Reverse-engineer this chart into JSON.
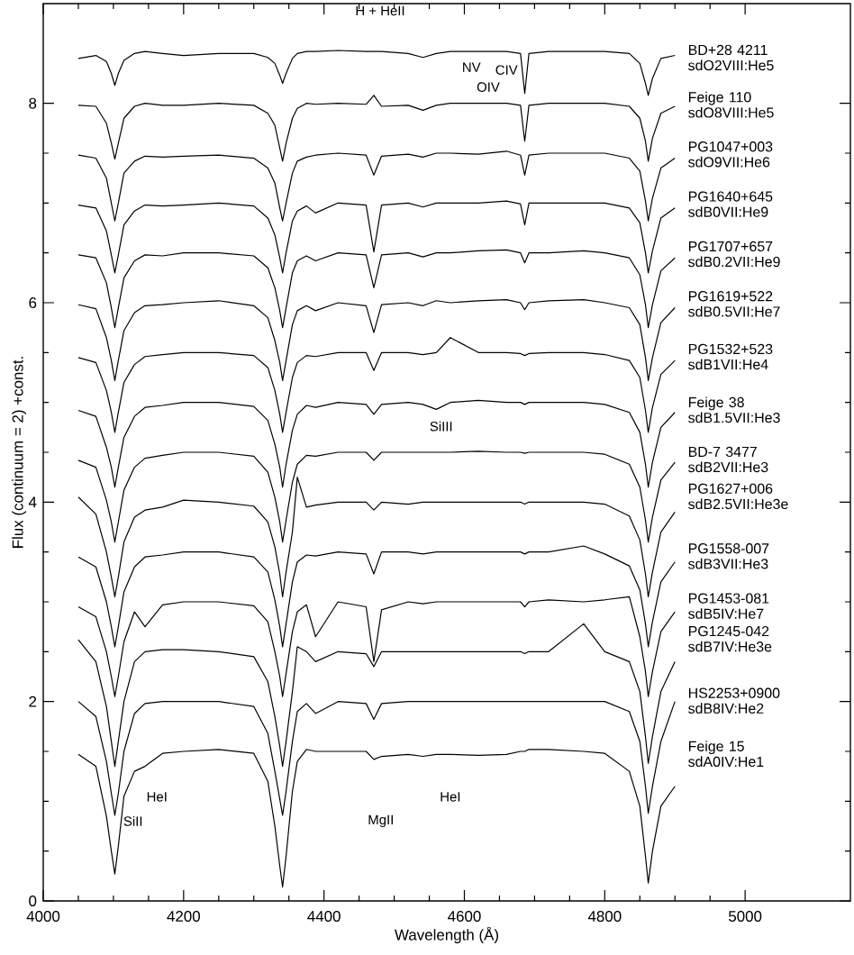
{
  "chart_data": {
    "type": "line",
    "xlabel": "Wavelength (Å)",
    "ylabel": "Flux (continuum = 2) +const.",
    "xlim": [
      4000,
      5150
    ],
    "ylim": [
      0,
      9.0
    ],
    "xticks": [
      4000,
      4200,
      4400,
      4600,
      4800,
      5000
    ],
    "yticks": [
      0,
      2,
      4,
      6,
      8
    ],
    "line_style": "solid",
    "x": [
      4050,
      4075,
      4090,
      4097,
      4102,
      4107,
      4115,
      4130,
      4145,
      4170,
      4200,
      4250,
      4300,
      4320,
      4330,
      4337,
      4341,
      4346,
      4355,
      4362,
      4375,
      4388,
      4420,
      4460,
      4471,
      4482,
      4520,
      4541,
      4560,
      4580,
      4620,
      4660,
      4680,
      4686,
      4692,
      4720,
      4770,
      4800,
      4835,
      4850,
      4858,
      4862,
      4868,
      4880,
      4900
    ],
    "series": [
      {
        "name": "BD+28 4211 sdO2VIII:He5",
        "color": "#000000",
        "values": [
          8.45,
          8.48,
          8.42,
          8.3,
          8.18,
          8.3,
          8.43,
          8.5,
          8.52,
          8.5,
          8.48,
          8.5,
          8.5,
          8.46,
          8.4,
          8.28,
          8.2,
          8.3,
          8.45,
          8.5,
          8.52,
          8.52,
          8.53,
          8.52,
          8.52,
          8.52,
          8.5,
          8.46,
          8.5,
          8.52,
          8.52,
          8.52,
          8.5,
          8.1,
          8.5,
          8.52,
          8.52,
          8.52,
          8.5,
          8.4,
          8.2,
          8.08,
          8.25,
          8.45,
          8.48
        ]
      },
      {
        "name": "Feige 110 sdO8VIII:He5",
        "color": "#000000",
        "values": [
          7.98,
          7.97,
          7.8,
          7.6,
          7.44,
          7.6,
          7.85,
          7.97,
          8.0,
          7.98,
          7.98,
          8.0,
          7.98,
          7.9,
          7.78,
          7.55,
          7.42,
          7.6,
          7.85,
          7.95,
          8.0,
          7.99,
          8.0,
          7.99,
          8.08,
          7.97,
          7.98,
          7.93,
          7.98,
          8.0,
          8.0,
          8.0,
          7.98,
          7.62,
          7.98,
          8.0,
          8.0,
          8.0,
          7.97,
          7.85,
          7.62,
          7.42,
          7.65,
          7.9,
          7.97
        ]
      },
      {
        "name": "PG1047+003 sdO9VII:He6",
        "color": "#000000",
        "values": [
          7.48,
          7.45,
          7.25,
          7.0,
          6.82,
          7.0,
          7.3,
          7.42,
          7.47,
          7.46,
          7.47,
          7.48,
          7.45,
          7.35,
          7.2,
          6.95,
          6.82,
          7.0,
          7.3,
          7.42,
          7.46,
          7.48,
          7.5,
          7.48,
          7.28,
          7.47,
          7.49,
          7.46,
          7.5,
          7.5,
          7.49,
          7.52,
          7.48,
          7.28,
          7.48,
          7.5,
          7.5,
          7.5,
          7.45,
          7.32,
          7.02,
          6.82,
          7.05,
          7.35,
          7.45
        ]
      },
      {
        "name": "PG1640+645 sdB0VII:He9",
        "color": "#000000",
        "values": [
          6.98,
          6.95,
          6.72,
          6.48,
          6.3,
          6.48,
          6.78,
          6.92,
          6.98,
          6.97,
          6.98,
          7.0,
          6.97,
          6.85,
          6.68,
          6.45,
          6.3,
          6.5,
          6.82,
          6.92,
          6.97,
          6.9,
          7.0,
          6.98,
          6.51,
          6.98,
          7.0,
          6.96,
          7.0,
          7.0,
          7.0,
          7.02,
          6.99,
          6.78,
          7.0,
          7.0,
          7.0,
          7.0,
          6.95,
          6.8,
          6.5,
          6.3,
          6.52,
          6.85,
          6.95
        ]
      },
      {
        "name": "PG1707+657 sdB0.2VII:He9",
        "color": "#000000",
        "values": [
          6.48,
          6.45,
          6.2,
          5.95,
          5.75,
          5.95,
          6.25,
          6.42,
          6.48,
          6.47,
          6.5,
          6.5,
          6.47,
          6.35,
          6.15,
          5.92,
          5.75,
          5.95,
          6.3,
          6.42,
          6.47,
          6.42,
          6.5,
          6.48,
          6.15,
          6.48,
          6.5,
          6.46,
          6.5,
          6.5,
          6.52,
          6.53,
          6.5,
          6.4,
          6.5,
          6.5,
          6.52,
          6.5,
          6.45,
          6.28,
          5.98,
          5.75,
          5.98,
          6.32,
          6.45
        ]
      },
      {
        "name": "PG1619+522 sdB0.5VII:He7",
        "color": "#000000",
        "values": [
          5.98,
          5.94,
          5.65,
          5.42,
          5.22,
          5.42,
          5.72,
          5.9,
          5.97,
          5.98,
          6.0,
          6.02,
          5.97,
          5.85,
          5.62,
          5.4,
          5.22,
          5.42,
          5.78,
          5.92,
          5.97,
          5.92,
          6.0,
          5.97,
          5.7,
          5.98,
          6.0,
          5.97,
          6.02,
          6.0,
          6.02,
          6.03,
          6.0,
          5.93,
          6.0,
          6.02,
          6.03,
          6.0,
          5.95,
          5.78,
          5.45,
          5.22,
          5.45,
          5.8,
          5.95
        ]
      },
      {
        "name": "PG1532+523 sdB1VII:He4",
        "color": "#000000",
        "values": [
          5.45,
          5.4,
          5.12,
          4.9,
          4.7,
          4.9,
          5.2,
          5.38,
          5.46,
          5.48,
          5.5,
          5.5,
          5.47,
          5.35,
          5.12,
          4.88,
          4.7,
          4.9,
          5.25,
          5.4,
          5.47,
          5.46,
          5.5,
          5.5,
          5.32,
          5.5,
          5.5,
          5.48,
          5.5,
          5.65,
          5.5,
          5.5,
          5.49,
          5.47,
          5.49,
          5.5,
          5.5,
          5.48,
          5.42,
          5.25,
          4.92,
          4.7,
          4.95,
          5.28,
          5.42
        ]
      },
      {
        "name": "Feige 38 sdB1.5VII:He3",
        "color": "#000000",
        "values": [
          4.92,
          4.86,
          4.55,
          4.35,
          4.15,
          4.35,
          4.65,
          4.86,
          4.95,
          4.97,
          5.0,
          5.0,
          4.96,
          4.82,
          4.58,
          4.35,
          4.15,
          4.38,
          4.72,
          4.88,
          4.97,
          4.95,
          5.0,
          4.98,
          4.88,
          4.98,
          5.0,
          4.98,
          4.93,
          5.0,
          5.02,
          5.0,
          5.0,
          4.98,
          5.0,
          5.0,
          5.0,
          4.98,
          4.9,
          4.7,
          4.38,
          4.15,
          4.4,
          4.75,
          4.9
        ]
      },
      {
        "name": "BD-7 3477 sdB2VII:He3",
        "color": "#000000",
        "values": [
          4.42,
          4.35,
          4.02,
          3.8,
          3.6,
          3.8,
          4.12,
          4.35,
          4.44,
          4.47,
          4.5,
          4.5,
          4.46,
          4.3,
          4.05,
          3.8,
          3.6,
          3.82,
          4.2,
          4.38,
          4.47,
          4.46,
          4.5,
          4.5,
          4.42,
          4.5,
          4.5,
          4.5,
          4.5,
          4.5,
          4.51,
          4.5,
          4.5,
          4.49,
          4.5,
          4.5,
          4.5,
          4.48,
          4.38,
          4.15,
          3.82,
          3.6,
          3.85,
          4.22,
          4.4
        ]
      },
      {
        "name": "PG1627+006 sdB2.5VII:He3e",
        "color": "#000000",
        "values": [
          4.05,
          3.88,
          3.5,
          3.25,
          3.05,
          3.25,
          3.6,
          3.85,
          3.92,
          3.95,
          4.02,
          4.0,
          3.96,
          3.8,
          3.55,
          3.28,
          3.05,
          3.3,
          3.7,
          4.25,
          3.95,
          3.97,
          4.0,
          4.0,
          3.92,
          4.0,
          3.98,
          4.0,
          4.0,
          4.0,
          4.0,
          4.0,
          4.0,
          3.98,
          4.0,
          4.0,
          4.0,
          3.98,
          3.86,
          3.62,
          3.28,
          3.05,
          3.3,
          3.7,
          3.9
        ]
      },
      {
        "name": "PG1558-007 sdB3VII:He3",
        "color": "#000000",
        "values": [
          3.45,
          3.35,
          3.0,
          2.75,
          2.55,
          2.75,
          3.1,
          3.35,
          3.45,
          3.47,
          3.5,
          3.5,
          3.45,
          3.3,
          3.02,
          2.75,
          2.55,
          2.78,
          3.2,
          3.4,
          3.47,
          3.46,
          3.5,
          3.48,
          3.28,
          3.5,
          3.5,
          3.48,
          3.5,
          3.5,
          3.5,
          3.5,
          3.5,
          3.48,
          3.5,
          3.5,
          3.56,
          3.48,
          3.36,
          3.12,
          2.78,
          2.55,
          2.8,
          3.2,
          3.4
        ]
      },
      {
        "name": "PG1453-081 sdB5IV:He7",
        "color": "#000000",
        "values": [
          2.95,
          2.85,
          2.5,
          2.25,
          2.05,
          2.25,
          2.6,
          2.9,
          2.75,
          2.97,
          3.0,
          3.0,
          2.96,
          2.8,
          2.5,
          2.25,
          2.05,
          2.28,
          2.7,
          2.9,
          2.97,
          2.65,
          3.0,
          2.95,
          2.4,
          2.92,
          3.0,
          2.98,
          3.0,
          3.0,
          3.0,
          3.0,
          3.0,
          2.95,
          3.0,
          3.02,
          3.0,
          3.02,
          3.05,
          2.65,
          2.3,
          2.05,
          2.3,
          2.7,
          2.9
        ]
      },
      {
        "name": "PG1245-042 sdB7IV:He3e",
        "color": "#000000",
        "values": [
          2.62,
          2.4,
          1.95,
          1.6,
          1.35,
          1.6,
          2.0,
          2.4,
          2.5,
          2.52,
          2.52,
          2.5,
          2.45,
          2.2,
          1.85,
          1.55,
          1.35,
          1.6,
          2.1,
          2.55,
          2.5,
          2.4,
          2.5,
          2.48,
          2.35,
          2.5,
          2.5,
          2.5,
          2.5,
          2.5,
          2.5,
          2.5,
          2.5,
          2.48,
          2.5,
          2.5,
          2.78,
          2.5,
          2.4,
          2.1,
          1.65,
          1.38,
          1.65,
          2.1,
          2.4
        ]
      },
      {
        "name": "HS2253+0900 sdB8IV:He2",
        "color": "#000000",
        "values": [
          2.0,
          1.85,
          1.4,
          1.08,
          0.86,
          1.08,
          1.5,
          1.88,
          1.98,
          2.0,
          2.0,
          2.0,
          1.95,
          1.68,
          1.3,
          1.02,
          0.86,
          1.1,
          1.6,
          1.9,
          1.98,
          1.88,
          2.0,
          1.98,
          1.82,
          1.98,
          2.0,
          2.0,
          2.0,
          2.0,
          2.0,
          2.0,
          2.0,
          2.0,
          2.0,
          2.0,
          2.0,
          2.0,
          1.9,
          1.6,
          1.15,
          0.88,
          1.15,
          1.6,
          2.0
        ]
      },
      {
        "name": "Feige 15 sdA0IV:He1",
        "color": "#000000",
        "values": [
          1.47,
          1.35,
          0.85,
          0.5,
          0.27,
          0.55,
          1.05,
          1.3,
          1.35,
          1.48,
          1.5,
          1.52,
          1.48,
          1.2,
          0.75,
          0.35,
          0.14,
          0.45,
          1.1,
          1.4,
          1.52,
          1.5,
          1.5,
          1.5,
          1.42,
          1.45,
          1.47,
          1.45,
          1.47,
          1.47,
          1.46,
          1.47,
          1.5,
          1.5,
          1.52,
          1.52,
          1.5,
          1.48,
          1.3,
          0.95,
          0.45,
          0.18,
          0.5,
          0.95,
          1.15
        ]
      }
    ],
    "annotations": [
      "H + HeII",
      "NV",
      "CIV",
      "OIV",
      "SiIII",
      "HeI",
      "SiII",
      "MgII",
      "HeI"
    ]
  }
}
